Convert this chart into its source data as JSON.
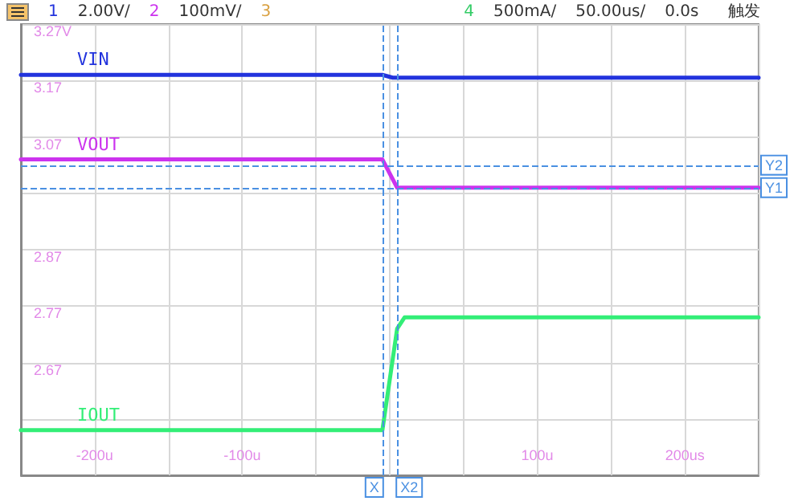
{
  "chart_data": {
    "type": "line",
    "annotations": [
      "1",
      "2.00V/",
      "2",
      "100mV/",
      "3",
      "4",
      "500mA/",
      "50.00us/",
      "0.0s",
      "触发"
    ],
    "xlim": [
      -250,
      250
    ],
    "xticks": [
      {
        "value": -250,
        "label": null
      },
      {
        "value": -200,
        "label": "-200u"
      },
      {
        "value": -150,
        "label": null
      },
      {
        "value": -100,
        "label": "-100u"
      },
      {
        "value": -50,
        "label": null
      },
      {
        "value": 0,
        "label": null
      },
      {
        "value": 50,
        "label": null
      },
      {
        "value": 100,
        "label": "100u"
      },
      {
        "value": 150,
        "label": null
      },
      {
        "value": 200,
        "label": "200us"
      },
      {
        "value": 250,
        "label": null
      }
    ],
    "ylim": [
      2.47,
      3.27
    ],
    "yticks": [
      {
        "value": 2.47,
        "label": null
      },
      {
        "value": 2.57,
        "label": null
      },
      {
        "value": 2.67,
        "label": "2.67"
      },
      {
        "value": 2.77,
        "label": "2.77"
      },
      {
        "value": 2.87,
        "label": "2.87"
      },
      {
        "value": 2.97,
        "label": null
      },
      {
        "value": 3.07,
        "label": "3.07"
      },
      {
        "value": 3.17,
        "label": "3.17"
      },
      {
        "value": 3.27,
        "label": "3.27V"
      }
    ],
    "grid": true,
    "marker": "none",
    "line_style": "solid",
    "series": [
      {
        "name": "VIN",
        "color": "#2233dd",
        "x": [
          -250,
          -5,
          2,
          250
        ],
        "values": [
          3.18,
          3.18,
          3.175,
          3.175
        ]
      },
      {
        "name": "VOUT",
        "color": "#cc33ee",
        "x": [
          -250,
          -5,
          5,
          250
        ],
        "values": [
          3.03,
          3.03,
          2.98,
          2.98
        ]
      },
      {
        "name": "IOUT",
        "color": "#33ee77",
        "x": [
          -250,
          -5,
          5,
          10,
          250
        ],
        "values": [
          2.55,
          2.55,
          2.73,
          2.75,
          2.75
        ]
      }
    ],
    "ref_lines": [
      {
        "axis": "x",
        "value": -5,
        "label": "X",
        "color": "#4a90e2",
        "line_style": "dashed"
      },
      {
        "axis": "x",
        "value": 5,
        "label": "X2",
        "color": "#4a90e2",
        "line_style": "dashed"
      },
      {
        "axis": "y",
        "value": 2.98,
        "label": "Y1",
        "color": "#4a90e2",
        "line_style": "dashed"
      },
      {
        "axis": "y",
        "value": 3.02,
        "label": "Y2",
        "color": "#4a90e2",
        "line_style": "dashed"
      }
    ]
  }
}
